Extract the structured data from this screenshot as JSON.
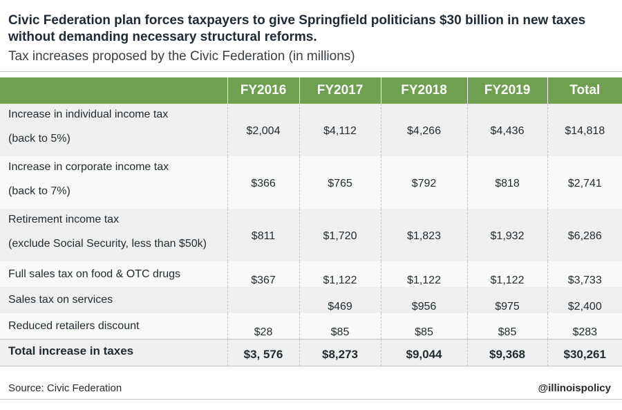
{
  "title": "Civic Federation plan forces taxpayers to give Springfield politicians $30 billion in new taxes without demanding necessary structural reforms.",
  "subtitle": "Tax increases proposed by the Civic Federation (in millions)",
  "chart_data": {
    "type": "table",
    "title": "Civic Federation plan forces taxpayers to give Springfield politicians $30 billion in new taxes without demanding necessary structural reforms.",
    "subtitle": "Tax increases proposed by the Civic Federation (in millions)",
    "columns": [
      "",
      "FY2016",
      "FY2017",
      "FY2018",
      "FY2019",
      "Total"
    ],
    "rows": [
      {
        "label": "Increase in individual income tax",
        "label2": "(back to 5%)",
        "values": [
          "$2,004",
          "$4,112",
          "$4,266",
          "$4,436",
          "$14,818"
        ]
      },
      {
        "label": "Increase in corporate income tax",
        "label2": "(back to 7%)",
        "values": [
          "$366",
          "$765",
          "$792",
          "$818",
          "$2,741"
        ]
      },
      {
        "label": "Retirement income tax",
        "label2": "(exclude Social Security, less than $50k)",
        "values": [
          "$811",
          "$1,720",
          "$1,823",
          "$1,932",
          "$6,286"
        ]
      },
      {
        "label": "Full sales tax on food & OTC drugs",
        "values": [
          "$367",
          "$1,122",
          "$1,122",
          "$1,122",
          "$3,733"
        ]
      },
      {
        "label": "Sales tax on services",
        "values": [
          "",
          "$469",
          "$956",
          "$975",
          "$2,400"
        ]
      },
      {
        "label": "Reduced retailers discount",
        "values": [
          "$28",
          "$85",
          "$85",
          "$85",
          "$283"
        ]
      }
    ],
    "total_row": {
      "label": "Total increase in taxes",
      "values": [
        "$3, 576",
        "$8,273",
        "$9,044",
        "$9,368",
        "$30,261"
      ]
    }
  },
  "footer": {
    "source": "Source: Civic Federation",
    "handle": "@illinoispolicy"
  },
  "colors": {
    "header_bg": "#6ea04f",
    "row_shade": "#efefef"
  }
}
